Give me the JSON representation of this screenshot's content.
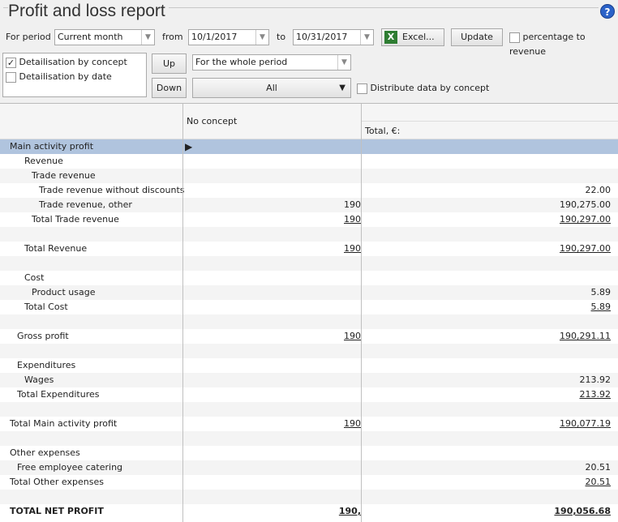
{
  "title": "Profit and loss report",
  "toolbar": {
    "period_label": "For period",
    "period_value": "Current month",
    "from_label": "from",
    "from_value": "10/1/2017",
    "to_label": "to",
    "to_value": "10/31/2017",
    "excel_label": "Excel...",
    "update_label": "Update",
    "percentage_label": "percentage to revenue",
    "percentage_checked": false
  },
  "options": {
    "detail_concept": "Detailisation by concept",
    "detail_concept_checked": true,
    "detail_date": "Detailisation by date",
    "detail_date_checked": false,
    "up_label": "Up",
    "down_label": "Down",
    "period_mode": "For the whole period",
    "filter": "All",
    "distribute_label": "Distribute data by concept",
    "distribute_checked": false
  },
  "grid": {
    "col1_header": "No concept",
    "col2_header": "Total, €:",
    "rows": [
      {
        "label": "Main activity profit",
        "level": 0,
        "c1": "",
        "c2": "",
        "selected": true
      },
      {
        "label": "Revenue",
        "level": 2,
        "c1": "",
        "c2": ""
      },
      {
        "label": "Trade revenue",
        "level": 3,
        "c1": "",
        "c2": ""
      },
      {
        "label": "Trade revenue without discounts",
        "level": 4,
        "c1": "",
        "c2": "22.00"
      },
      {
        "label": "Trade revenue, other",
        "level": 4,
        "c1": "190",
        "c2": "190,275.00"
      },
      {
        "label": "Total Trade revenue",
        "level": 3,
        "c1": "190",
        "c2": "190,297.00",
        "underline": true
      },
      {
        "label": "",
        "level": 0,
        "c1": "",
        "c2": ""
      },
      {
        "label": "Total Revenue",
        "level": 2,
        "c1": "190",
        "c2": "190,297.00",
        "underline": true
      },
      {
        "label": "",
        "level": 0,
        "c1": "",
        "c2": ""
      },
      {
        "label": "Cost",
        "level": 2,
        "c1": "",
        "c2": ""
      },
      {
        "label": "Product usage",
        "level": 3,
        "c1": "",
        "c2": "5.89"
      },
      {
        "label": "Total Cost",
        "level": 2,
        "c1": "",
        "c2": "5.89",
        "underline": true
      },
      {
        "label": "",
        "level": 0,
        "c1": "",
        "c2": ""
      },
      {
        "label": "Gross profit",
        "level": 1,
        "c1": "190",
        "c2": "190,291.11",
        "underline": true
      },
      {
        "label": "",
        "level": 0,
        "c1": "",
        "c2": ""
      },
      {
        "label": "Expenditures",
        "level": 1,
        "c1": "",
        "c2": ""
      },
      {
        "label": "Wages",
        "level": 2,
        "c1": "",
        "c2": "213.92"
      },
      {
        "label": "Total Expenditures",
        "level": 1,
        "c1": "",
        "c2": "213.92",
        "underline": true
      },
      {
        "label": "",
        "level": 0,
        "c1": "",
        "c2": ""
      },
      {
        "label": "Total Main activity profit",
        "level": 0,
        "c1": "190",
        "c2": "190,077.19",
        "underline": true
      },
      {
        "label": "",
        "level": 0,
        "c1": "",
        "c2": ""
      },
      {
        "label": "Other expenses",
        "level": 0,
        "c1": "",
        "c2": ""
      },
      {
        "label": "Free employee catering",
        "level": 1,
        "c1": "",
        "c2": "20.51"
      },
      {
        "label": "Total Other expenses",
        "level": 0,
        "c1": "",
        "c2": "20.51",
        "underline": true
      },
      {
        "label": "",
        "level": 0,
        "c1": "",
        "c2": ""
      },
      {
        "label": "TOTAL NET PROFIT",
        "level": 0,
        "c1": "190,",
        "c2": "190,056.68",
        "underline": true,
        "bold": true
      }
    ]
  }
}
